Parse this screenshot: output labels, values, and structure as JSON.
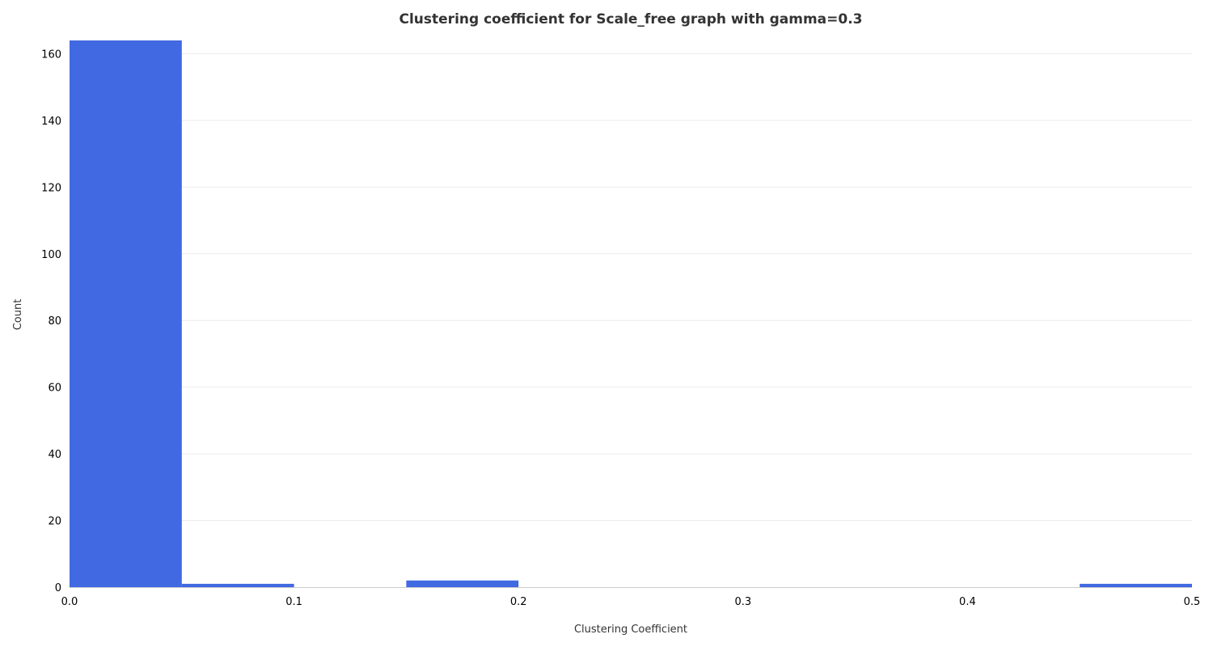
{
  "chart_data": {
    "type": "bar",
    "title": "Clustering coefficient for Scale_free graph with gamma=0.3",
    "xlabel": "Clustering Coefficient",
    "ylabel": "Count",
    "xlim": [
      0.0,
      0.5
    ],
    "ylim": [
      0,
      164
    ],
    "grid": true,
    "bar_color": "#4169e1",
    "bin_width": 0.05,
    "bins": [
      {
        "x0": 0.0,
        "x1": 0.05,
        "count": 164
      },
      {
        "x0": 0.05,
        "x1": 0.1,
        "count": 1
      },
      {
        "x0": 0.1,
        "x1": 0.15,
        "count": 0
      },
      {
        "x0": 0.15,
        "x1": 0.2,
        "count": 2
      },
      {
        "x0": 0.2,
        "x1": 0.25,
        "count": 0
      },
      {
        "x0": 0.25,
        "x1": 0.3,
        "count": 0
      },
      {
        "x0": 0.3,
        "x1": 0.35,
        "count": 0
      },
      {
        "x0": 0.35,
        "x1": 0.4,
        "count": 0
      },
      {
        "x0": 0.4,
        "x1": 0.45,
        "count": 0
      },
      {
        "x0": 0.45,
        "x1": 0.5,
        "count": 1
      }
    ],
    "x_ticks": [
      {
        "value": 0.0,
        "label": "0.0"
      },
      {
        "value": 0.1,
        "label": "0.1"
      },
      {
        "value": 0.2,
        "label": "0.2"
      },
      {
        "value": 0.3,
        "label": "0.3"
      },
      {
        "value": 0.4,
        "label": "0.4"
      },
      {
        "value": 0.5,
        "label": "0.5"
      }
    ],
    "y_ticks": [
      {
        "value": 0,
        "label": "0"
      },
      {
        "value": 20,
        "label": "20"
      },
      {
        "value": 40,
        "label": "40"
      },
      {
        "value": 60,
        "label": "60"
      },
      {
        "value": 80,
        "label": "80"
      },
      {
        "value": 100,
        "label": "100"
      },
      {
        "value": 120,
        "label": "120"
      },
      {
        "value": 140,
        "label": "140"
      },
      {
        "value": 160,
        "label": "160"
      }
    ]
  }
}
